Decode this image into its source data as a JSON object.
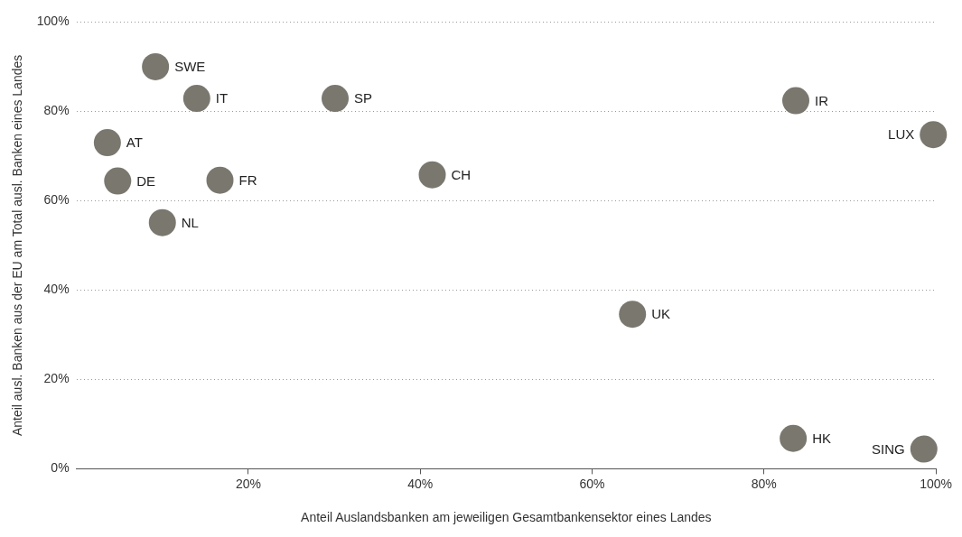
{
  "chart_data": {
    "type": "scatter",
    "xlabel": "Anteil Auslandsbanken am jeweiligen Gesamtbankensektor eines Landes",
    "ylabel": "Anteil ausl. Banken aus der EU am Total ausl. Banken eines Landes",
    "x": [
      9.2,
      14.0,
      30.1,
      3.6,
      4.8,
      16.7,
      41.4,
      10.0,
      83.7,
      99.7,
      64.7,
      83.4,
      98.6
    ],
    "series": [
      {
        "color": "#7a776e",
        "values": [
          90.0,
          82.9,
          82.9,
          73.0,
          64.4,
          64.6,
          65.8,
          55.1,
          82.4,
          74.8,
          34.6,
          6.8,
          4.4
        ]
      }
    ],
    "xlim": [
      0,
      100
    ],
    "xticks": [
      {
        "value": 20,
        "label": "20%"
      },
      {
        "value": 40,
        "label": "40%"
      },
      {
        "value": 60,
        "label": "60%"
      },
      {
        "value": 80,
        "label": "80%"
      },
      {
        "value": 100,
        "label": "100%"
      }
    ],
    "ylim": [
      0,
      100
    ],
    "yticks": [
      {
        "value": 0,
        "label": "0%"
      },
      {
        "value": 20,
        "label": "20%"
      },
      {
        "value": 40,
        "label": "40%"
      },
      {
        "value": 60,
        "label": "60%"
      },
      {
        "value": 80,
        "label": "80%"
      },
      {
        "value": 100,
        "label": "100%"
      }
    ],
    "grid": "y",
    "marker": "circle",
    "legend": false,
    "annotations": [
      {
        "text": "SWE",
        "x": 9.2,
        "y": 90.0
      },
      {
        "text": "IT",
        "x": 14.0,
        "y": 82.9
      },
      {
        "text": "SP",
        "x": 30.1,
        "y": 82.9
      },
      {
        "text": "AT",
        "x": 3.6,
        "y": 73.0
      },
      {
        "text": "DE",
        "x": 4.8,
        "y": 64.4
      },
      {
        "text": "FR",
        "x": 16.7,
        "y": 64.6
      },
      {
        "text": "CH",
        "x": 41.4,
        "y": 65.8
      },
      {
        "text": "NL",
        "x": 10.0,
        "y": 55.1
      },
      {
        "text": "IR",
        "x": 83.7,
        "y": 82.4
      },
      {
        "text": "LUX",
        "x": 99.7,
        "y": 74.8
      },
      {
        "text": "UK",
        "x": 64.7,
        "y": 34.6
      },
      {
        "text": "HK",
        "x": 83.4,
        "y": 6.8
      },
      {
        "text": "SING",
        "x": 98.6,
        "y": 4.4
      }
    ]
  }
}
